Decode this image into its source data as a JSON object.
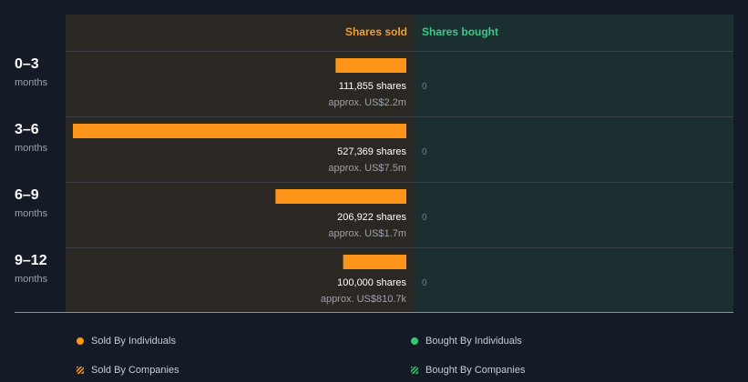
{
  "chart_data": {
    "type": "bar",
    "orientation": "horizontal",
    "columns": {
      "sold": "Shares sold",
      "bought": "Shares bought"
    },
    "categories": [
      {
        "period": "0–3",
        "unit": "months"
      },
      {
        "period": "3–6",
        "unit": "months"
      },
      {
        "period": "6–9",
        "unit": "months"
      },
      {
        "period": "9–12",
        "unit": "months"
      }
    ],
    "series": [
      {
        "name": "Shares sold",
        "values": [
          111855,
          527369,
          206922,
          100000
        ],
        "labels": [
          "111,855 shares",
          "527,369 shares",
          "206,922 shares",
          "100,000 shares"
        ],
        "sublabels": [
          "approx. US$2.2m",
          "approx. US$7.5m",
          "approx. US$1.7m",
          "approx. US$810.7k"
        ]
      },
      {
        "name": "Shares bought",
        "values": [
          0,
          0,
          0,
          0
        ],
        "labels": [
          "0",
          "0",
          "0",
          "0"
        ]
      }
    ],
    "legend": {
      "placement": "bottom",
      "items": [
        {
          "label": "Sold By Individuals",
          "color": "#ff9518",
          "pattern": "solid"
        },
        {
          "label": "Bought By Individuals",
          "color": "#2ecc71",
          "pattern": "solid"
        },
        {
          "label": "Sold By Companies",
          "color": "#ff9518",
          "pattern": "striped"
        },
        {
          "label": "Bought By Companies",
          "color": "#2ecc71",
          "pattern": "striped"
        }
      ]
    },
    "colors": {
      "sold": "#ff9518",
      "sold_header": "#f0a030",
      "bought_header": "#3dc88a",
      "sold_panel": "#2b2722",
      "bought_panel": "#1b2e30",
      "background": "#151b26"
    }
  }
}
